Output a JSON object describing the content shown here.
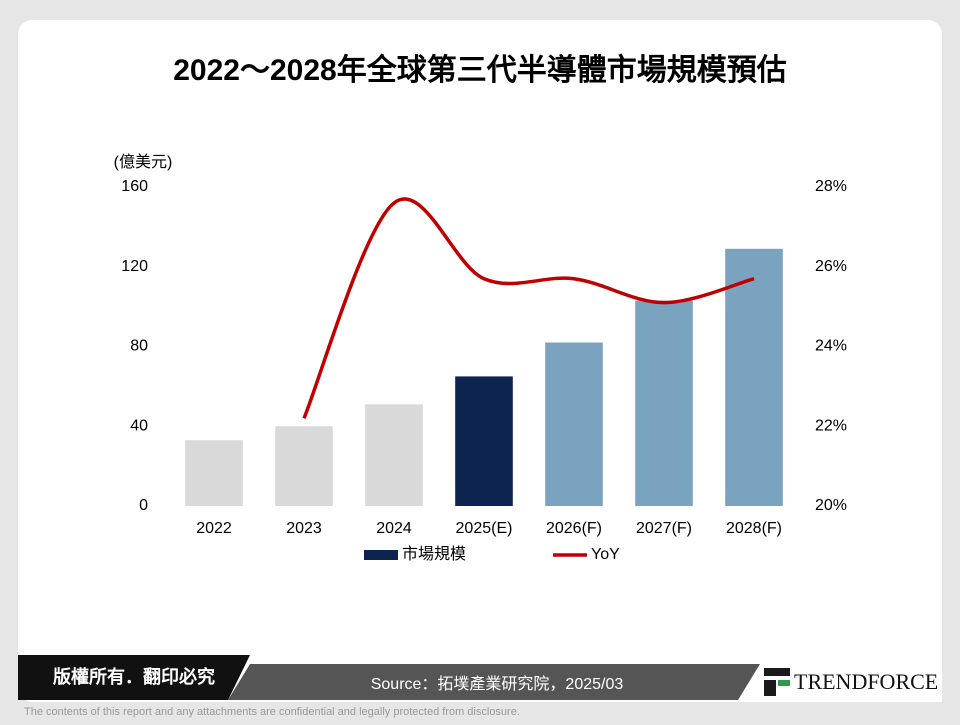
{
  "chart_data": {
    "type": "bar",
    "title": "2022～2028年全球第三代半導體市場規模預估",
    "y_label": "(億美元)",
    "categories": [
      "2022",
      "2023",
      "2024",
      "2025(E)",
      "2026(F)",
      "2027(F)",
      "2028(F)"
    ],
    "series": [
      {
        "name": "市場規模",
        "color": "#0d2350",
        "values": [
          33,
          40,
          51,
          65,
          82,
          103,
          129
        ],
        "colors": [
          "#d9d9d9",
          "#d9d9d9",
          "#d9d9d9",
          "#0d2350",
          "#7aa3bf",
          "#7aa3bf",
          "#7aa3bf"
        ]
      },
      {
        "name": "YoY",
        "type": "line",
        "axis": "y2",
        "color": "#c00000",
        "values": [
          null,
          22.2,
          27.6,
          25.7,
          25.7,
          25.1,
          25.7
        ]
      }
    ],
    "ylim": [
      0,
      160
    ],
    "yticks": [
      0,
      40,
      80,
      120,
      160
    ],
    "y2lim": [
      20,
      28
    ],
    "y2ticks": [
      {
        "value": 20,
        "label": "20%"
      },
      {
        "value": 22,
        "label": "22%"
      },
      {
        "value": 24,
        "label": "24%"
      },
      {
        "value": 26,
        "label": "26%"
      },
      {
        "value": 28,
        "label": "28%"
      }
    ],
    "grid": false,
    "legend": "bottom"
  },
  "footer": {
    "rights": "版權所有．翻印必究",
    "source": "Source：拓墣產業研究院，2025/03",
    "logo": "TRENDFORCE",
    "disclaimer": "The contents of this report and any attachments are confidential and legally protected from disclosure."
  }
}
